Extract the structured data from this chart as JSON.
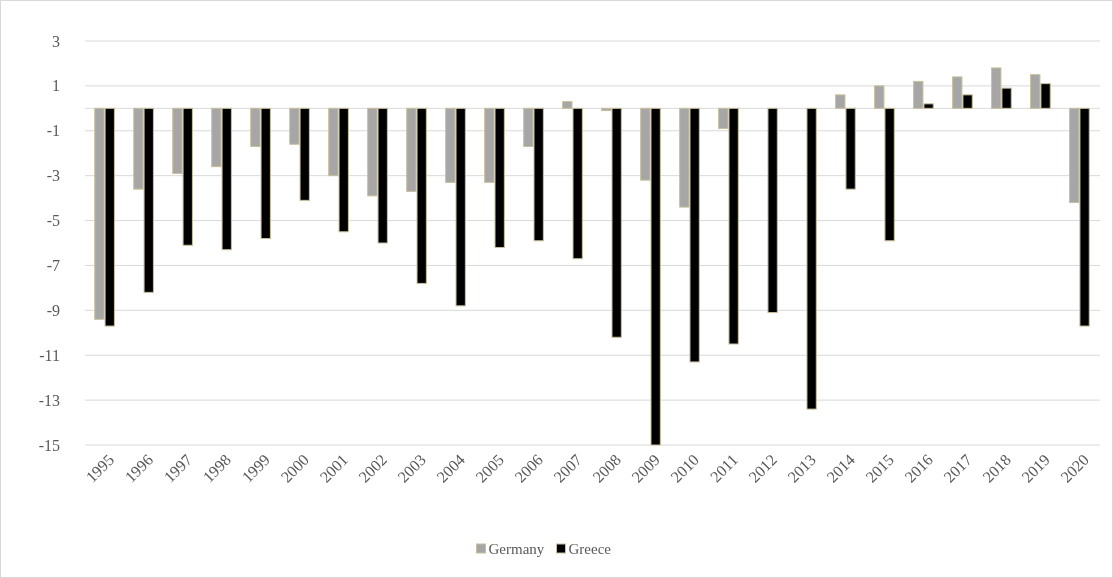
{
  "chart_data": {
    "type": "bar",
    "categories": [
      "1995",
      "1996",
      "1997",
      "1998",
      "1999",
      "2000",
      "2001",
      "2002",
      "2003",
      "2004",
      "2005",
      "2006",
      "2007",
      "2008",
      "2009",
      "2010",
      "2011",
      "2012",
      "2013",
      "2014",
      "2015",
      "2016",
      "2017",
      "2018",
      "2019",
      "2020"
    ],
    "series": [
      {
        "name": "Germany",
        "color": "#a6a6a6",
        "values": [
          -9.4,
          -3.6,
          -2.9,
          -2.6,
          -1.7,
          -1.6,
          -3.0,
          -3.9,
          -3.7,
          -3.3,
          -3.3,
          -1.7,
          0.3,
          -0.1,
          -3.2,
          -4.4,
          -0.9,
          0.0,
          0.0,
          0.6,
          1.0,
          1.2,
          1.4,
          1.8,
          1.5,
          -4.2
        ]
      },
      {
        "name": "Greece",
        "color": "#000000",
        "values": [
          -9.7,
          -8.2,
          -6.1,
          -6.3,
          -5.8,
          -4.1,
          -5.5,
          -6.0,
          -7.8,
          -8.8,
          -6.2,
          -5.9,
          -6.7,
          -10.2,
          -15.0,
          -11.3,
          -10.5,
          -9.1,
          -13.4,
          -3.6,
          -5.9,
          0.2,
          0.6,
          0.9,
          1.1,
          -9.7
        ]
      }
    ],
    "ylim": [
      -15,
      3
    ],
    "yticks": [
      -15,
      -13,
      -11,
      -9,
      -7,
      -5,
      -3,
      -1,
      1,
      3
    ],
    "grid": "y",
    "legend": "bottom"
  }
}
